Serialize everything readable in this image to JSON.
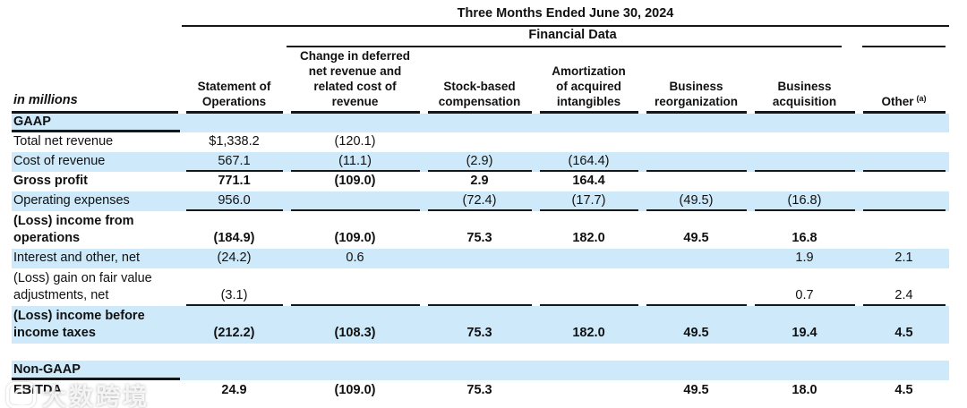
{
  "table": {
    "title": "Three Months Ended June 30, 2024",
    "group_header": "Financial Data",
    "row_label_header": "in millions",
    "columns": [
      "Statement of\nOperations",
      "Change in deferred\nnet revenue and\nrelated cost of\nrevenue",
      "Stock-based\ncompensation",
      "Amortization\nof acquired\nintangibles",
      "Business\nreorganization",
      "Business\nacquisition"
    ],
    "other_column": {
      "label": "Other",
      "footnote": "(a)"
    },
    "rows": [
      {
        "id": "gaap-section",
        "label": "GAAP",
        "bold": true,
        "highlight": true,
        "label_underline": true,
        "values": [
          "",
          "",
          "",
          "",
          "",
          "",
          ""
        ]
      },
      {
        "id": "total-net-revenue",
        "label": "Total net revenue",
        "values": [
          "$1,338.2",
          "(120.1)",
          "",
          "",
          "",
          "",
          ""
        ]
      },
      {
        "id": "cost-of-revenue",
        "label": "Cost of revenue",
        "highlight": true,
        "value_underline": true,
        "values": [
          "567.1",
          "(11.1)",
          "(2.9)",
          "(164.4)",
          "",
          "",
          ""
        ]
      },
      {
        "id": "gross-profit",
        "label": "Gross profit",
        "bold": true,
        "values": [
          "771.1",
          "(109.0)",
          "2.9",
          "164.4",
          "",
          "",
          ""
        ]
      },
      {
        "id": "operating-expenses",
        "label": "Operating expenses",
        "highlight": true,
        "value_underline": true,
        "values": [
          "956.0",
          "",
          "(72.4)",
          "(17.7)",
          "(49.5)",
          "(16.8)",
          ""
        ]
      },
      {
        "id": "loss-income-from-operations",
        "label": "(Loss) income from\noperations",
        "bold": true,
        "values": [
          "(184.9)",
          "(109.0)",
          "75.3",
          "182.0",
          "49.5",
          "16.8",
          ""
        ]
      },
      {
        "id": "interest-and-other-net",
        "label": "Interest and other, net",
        "highlight": true,
        "values": [
          "(24.2)",
          "0.6",
          "",
          "",
          "",
          "1.9",
          "2.1"
        ]
      },
      {
        "id": "loss-gain-on-fair-value-adjustments-net",
        "label": "(Loss) gain on fair value\nadjustments, net",
        "value_underline": true,
        "values": [
          "(3.1)",
          "",
          "",
          "",
          "",
          "0.7",
          "2.4"
        ]
      },
      {
        "id": "loss-income-before-income-taxes",
        "label": "(Loss) income before\nincome taxes",
        "bold": true,
        "highlight": true,
        "values": [
          "(212.2)",
          "(108.3)",
          "75.3",
          "182.0",
          "49.5",
          "19.4",
          "4.5"
        ]
      },
      {
        "id": "section-gap",
        "label": "",
        "spacer": true,
        "values": [
          "",
          "",
          "",
          "",
          "",
          "",
          ""
        ]
      },
      {
        "id": "non-gaap-section",
        "label": "Non-GAAP",
        "bold": true,
        "highlight": true,
        "label_underline": true,
        "values": [
          "",
          "",
          "",
          "",
          "",
          "",
          ""
        ]
      },
      {
        "id": "ebitda",
        "label": "EBITDA",
        "bold": true,
        "last": true,
        "values": [
          "24.9",
          "(109.0)",
          "75.3",
          "",
          "49.5",
          "18.0",
          "4.5"
        ]
      }
    ]
  },
  "watermark": {
    "text": "大数跨境"
  },
  "colors": {
    "row_highlight": "#cde9fa",
    "line_color": "#14181b"
  }
}
